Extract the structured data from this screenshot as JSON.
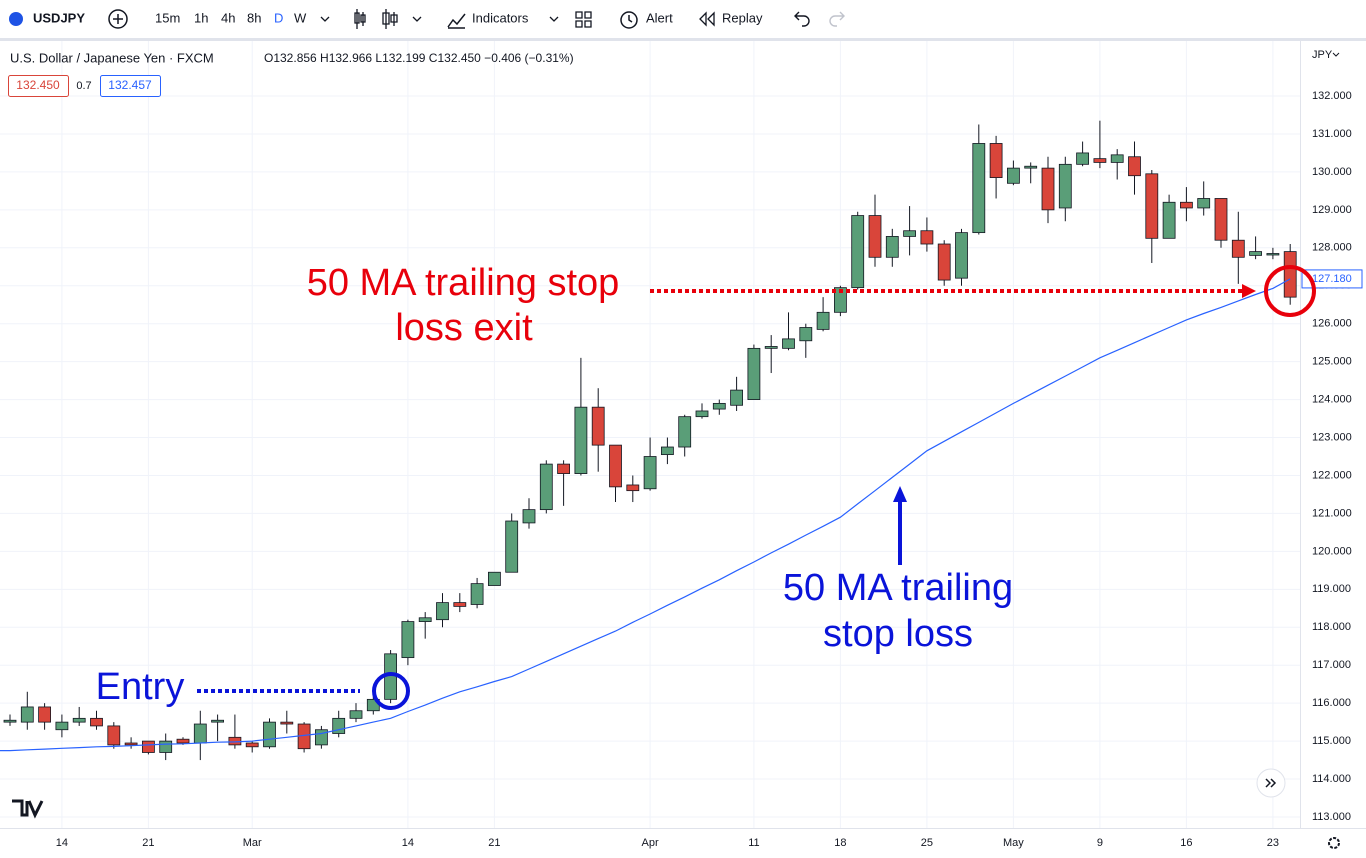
{
  "toolbar": {
    "symbol": "USDJPY",
    "intervals": [
      "15m",
      "1h",
      "4h",
      "8h",
      "D",
      "W"
    ],
    "indicators": "Indicators",
    "alert": "Alert",
    "replay": "Replay"
  },
  "legend": {
    "name": "U.S. Dollar / Japanese Yen · FXCM",
    "ohlc": "O132.856 H132.966 L132.199 C132.450 −0.406 (−0.31%)",
    "bid": "132.450",
    "spread": "0.7",
    "ask": "132.457"
  },
  "currency": "JPY",
  "chart_data": {
    "type": "candlestick",
    "categories": [
      null,
      null,
      null,
      "14",
      null,
      null,
      null,
      null,
      "21",
      null,
      null,
      null,
      null,
      null,
      "Mar",
      null,
      null,
      null,
      null,
      null,
      null,
      null,
      null,
      "14",
      null,
      null,
      null,
      null,
      "21",
      null,
      null,
      null,
      null,
      null,
      null,
      null,
      null,
      "Apr",
      null,
      null,
      null,
      null,
      null,
      "11",
      null,
      null,
      null,
      null,
      "18",
      null,
      null,
      null,
      null,
      "25",
      null,
      null,
      null,
      null,
      "May",
      null,
      null,
      null,
      null,
      "9",
      null,
      null,
      null,
      null,
      "16",
      null,
      null,
      null,
      null,
      "23",
      null
    ],
    "open": [
      115.5,
      115.5,
      115.9,
      115.3,
      115.5,
      115.6,
      115.4,
      114.95,
      115.0,
      114.7,
      115.05,
      114.95,
      115.5,
      115.1,
      114.95,
      114.85,
      115.5,
      115.45,
      114.9,
      115.2,
      115.6,
      115.8,
      116.1,
      117.2,
      118.15,
      118.2,
      118.65,
      118.6,
      119.1,
      119.45,
      120.75,
      121.1,
      122.3,
      122.05,
      123.8,
      122.8,
      121.75,
      121.65,
      122.55,
      122.75,
      123.55,
      123.75,
      123.85,
      124.0,
      125.35,
      125.35,
      125.55,
      125.85,
      126.3,
      126.95,
      128.85,
      127.75,
      128.3,
      128.45,
      128.1,
      127.2,
      128.4,
      130.75,
      129.7,
      130.1,
      130.1,
      129.05,
      130.2,
      130.35,
      130.25,
      130.4,
      129.95,
      128.25,
      129.2,
      129.05,
      129.3,
      128.2,
      127.8,
      127.85,
      127.9
    ],
    "high": [
      115.7,
      116.3,
      116.0,
      115.7,
      115.9,
      115.8,
      115.5,
      115.1,
      115.0,
      115.2,
      115.1,
      115.8,
      115.7,
      115.7,
      115.0,
      115.6,
      115.8,
      115.5,
      115.4,
      115.8,
      116.0,
      116.2,
      117.4,
      118.2,
      118.4,
      118.9,
      118.9,
      119.3,
      119.45,
      121.0,
      121.4,
      122.4,
      122.4,
      125.1,
      124.3,
      122.8,
      122.0,
      123.0,
      123.0,
      123.6,
      123.9,
      124.0,
      124.6,
      125.45,
      125.7,
      126.3,
      126.0,
      126.7,
      127.0,
      128.95,
      129.4,
      128.5,
      129.1,
      128.8,
      128.2,
      128.5,
      131.25,
      130.95,
      130.3,
      130.25,
      130.4,
      130.4,
      130.8,
      131.35,
      130.6,
      130.8,
      130.05,
      129.4,
      129.6,
      129.75,
      129.3,
      128.95,
      128.3,
      128.0,
      128.1
    ],
    "low": [
      115.4,
      115.3,
      115.3,
      115.1,
      115.4,
      115.3,
      114.8,
      114.8,
      114.65,
      114.5,
      114.9,
      114.5,
      115.0,
      114.8,
      114.7,
      114.8,
      115.2,
      114.7,
      114.8,
      115.1,
      115.5,
      115.7,
      116.0,
      117.0,
      117.7,
      118.0,
      118.4,
      118.5,
      119.1,
      119.45,
      120.6,
      121.0,
      121.2,
      122.0,
      122.1,
      121.3,
      121.3,
      121.6,
      122.3,
      122.5,
      123.5,
      123.6,
      123.7,
      124.0,
      124.7,
      125.3,
      125.1,
      125.8,
      126.2,
      126.9,
      127.5,
      127.5,
      127.8,
      127.9,
      127.0,
      127.0,
      128.35,
      129.3,
      129.65,
      129.7,
      128.65,
      128.7,
      130.15,
      130.1,
      129.8,
      129.4,
      127.6,
      128.25,
      128.7,
      128.85,
      128.0,
      127.05,
      127.7,
      127.7,
      126.5
    ],
    "close": [
      115.55,
      115.9,
      115.5,
      115.5,
      115.6,
      115.4,
      114.9,
      114.9,
      114.7,
      115.0,
      114.95,
      115.45,
      115.55,
      114.9,
      114.85,
      115.5,
      115.45,
      114.8,
      115.3,
      115.6,
      115.8,
      116.1,
      117.3,
      118.15,
      118.25,
      118.65,
      118.55,
      119.15,
      119.45,
      120.8,
      121.1,
      122.3,
      122.05,
      123.8,
      122.8,
      121.7,
      121.6,
      122.5,
      122.75,
      123.55,
      123.7,
      123.9,
      124.25,
      125.35,
      125.4,
      125.6,
      125.9,
      126.3,
      126.95,
      128.85,
      127.75,
      128.3,
      128.45,
      128.1,
      127.15,
      128.4,
      130.75,
      129.85,
      130.1,
      130.15,
      129.0,
      130.2,
      130.5,
      130.25,
      130.45,
      129.9,
      128.25,
      129.2,
      129.05,
      129.3,
      128.2,
      127.75,
      127.9,
      127.85,
      126.7
    ],
    "up_color": "#5a9e78",
    "down_color": "#d9453a",
    "line": {
      "color": "#2962ff",
      "values": [
        114.75,
        114.77,
        114.79,
        114.81,
        114.83,
        114.85,
        114.86,
        114.88,
        114.9,
        114.92,
        114.93,
        114.95,
        114.97,
        114.98,
        115.0,
        115.05,
        115.1,
        115.15,
        115.2,
        115.3,
        115.4,
        115.5,
        115.6,
        115.78,
        115.95,
        116.13,
        116.3,
        116.43,
        116.57,
        116.7,
        116.9,
        117.1,
        117.3,
        117.5,
        117.7,
        117.9,
        118.13,
        118.35,
        118.58,
        118.8,
        119.03,
        119.25,
        119.49,
        119.72,
        119.96,
        120.19,
        120.43,
        120.66,
        120.9,
        121.25,
        121.6,
        121.95,
        122.3,
        122.65,
        122.9,
        123.15,
        123.4,
        123.65,
        123.9,
        124.14,
        124.38,
        124.62,
        124.86,
        125.1,
        125.3,
        125.5,
        125.7,
        125.9,
        126.1,
        126.27,
        126.43,
        126.6,
        126.77,
        126.93,
        127.18
      ],
      "last_label": "127.180"
    },
    "ylim": [
      112.71,
      133.45
    ],
    "yticks": [
      {
        "value": 113,
        "label": "113.000"
      },
      {
        "value": 114,
        "label": "114.000"
      },
      {
        "value": 115,
        "label": "115.000"
      },
      {
        "value": 116,
        "label": "116.000"
      },
      {
        "value": 117,
        "label": "117.000"
      },
      {
        "value": 118,
        "label": "118.000"
      },
      {
        "value": 119,
        "label": "119.000"
      },
      {
        "value": 120,
        "label": "120.000"
      },
      {
        "value": 121,
        "label": "121.000"
      },
      {
        "value": 122,
        "label": "122.000"
      },
      {
        "value": 123,
        "label": "123.000"
      },
      {
        "value": 124,
        "label": "124.000"
      },
      {
        "value": 125,
        "label": "125.000"
      },
      {
        "value": 126,
        "label": "126.000"
      },
      {
        "value": 127,
        "label": "127.000"
      },
      {
        "value": 128,
        "label": "128.000"
      },
      {
        "value": 129,
        "label": "129.000"
      },
      {
        "value": 130,
        "label": "130.000"
      },
      {
        "value": 131,
        "label": "131.000"
      },
      {
        "value": 132,
        "label": "132.000"
      }
    ],
    "grid": true,
    "annotations": {
      "exit_line1": "50 MA trailing stop",
      "exit_line2": "loss exit",
      "entry": "Entry",
      "ma_line1": "50 MA trailing",
      "ma_line2": "stop loss"
    }
  }
}
